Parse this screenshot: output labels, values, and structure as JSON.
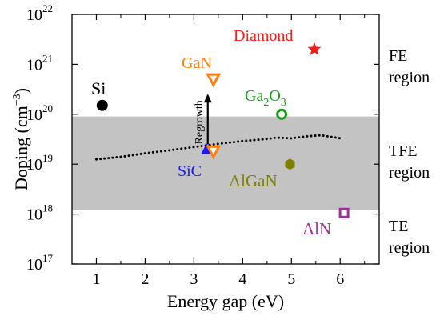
{
  "chart_data": {
    "type": "scatter",
    "title": "",
    "xlabel": "Energy gap (eV)",
    "ylabel": "Doping (cm⁻³)",
    "ylabel_parts": {
      "main": "Doping (cm",
      "sup": "−3",
      "close": ")"
    },
    "xlim": [
      0.5,
      6.8
    ],
    "ylim": [
      1e+17,
      1e+22
    ],
    "yscale": "log",
    "x_ticks": [
      1,
      2,
      3,
      4,
      5,
      6
    ],
    "x_tick_labels": [
      "1",
      "2",
      "3",
      "4",
      "5",
      "6"
    ],
    "y_ticks": [
      {
        "value": 1e+17,
        "base": "10",
        "exp": "17"
      },
      {
        "value": 1e+18,
        "base": "10",
        "exp": "18"
      },
      {
        "value": 1e+19,
        "base": "10",
        "exp": "19"
      },
      {
        "value": 1e+20,
        "base": "10",
        "exp": "20"
      },
      {
        "value": 1e+21,
        "base": "10",
        "exp": "21"
      },
      {
        "value": 1e+22,
        "base": "10",
        "exp": "22"
      }
    ],
    "grid": false,
    "shaded_band": {
      "y_from": 1.2e+18,
      "y_to": 9e+19,
      "color": "#c3c3c3"
    },
    "regions": [
      {
        "lines": [
          "FE",
          "region"
        ]
      },
      {
        "lines": [
          "TFE",
          "region"
        ]
      },
      {
        "lines": [
          "TE",
          "region"
        ]
      }
    ],
    "materials": [
      {
        "name": "Si",
        "x": 1.12,
        "y": 1.5e+20,
        "marker": "filled-circle",
        "color": "#000000",
        "label_color": "#000000"
      },
      {
        "name": "SiC",
        "x": 3.26,
        "y": 2e+19,
        "marker": "filled-triangle-up",
        "color": "#1a1aff",
        "label_color": "#1a1aff"
      },
      {
        "name": "GaN",
        "x": 3.4,
        "y": 5e+20,
        "marker": "open-triangle-down",
        "color": "#ff7f0e",
        "label_color": "#ff7f0e"
      },
      {
        "name": "GaN (regrowth base)",
        "x": 3.4,
        "y": 1.8e+19,
        "marker": "open-triangle-down",
        "color": "#ff7f0e"
      },
      {
        "name": "Ga₂O₃",
        "label_base": "Ga",
        "label_sub1": "2",
        "label_mid": "O",
        "label_sub2": "3",
        "x": 4.8,
        "y": 1e+20,
        "marker": "open-circle",
        "color": "#1a9a1a",
        "label_color": "#1a9a1a"
      },
      {
        "name": "AlGaN",
        "x": 4.97,
        "y": 1e+19,
        "marker": "filled-hexagon",
        "color": "#808000",
        "label_color": "#808000"
      },
      {
        "name": "Diamond",
        "x": 5.47,
        "y": 2e+21,
        "marker": "filled-star",
        "color": "#ff1a1a",
        "label_color": "#ff1a1a"
      },
      {
        "name": "AlN",
        "x": 6.08,
        "y": 1.05e+18,
        "marker": "open-square",
        "color": "#993399",
        "label_color": "#993399"
      }
    ],
    "regrowth_arrow": {
      "x": 3.4,
      "y_from": 2e+19,
      "y_to": 4e+20,
      "label": "Regrowth"
    },
    "boundary_curve": {
      "style": "dotted",
      "color": "#000000",
      "points": [
        [
          1.0,
          1.25e+19
        ],
        [
          1.5,
          1.4e+19
        ],
        [
          2.0,
          1.65e+19
        ],
        [
          2.5,
          1.9e+19
        ],
        [
          3.0,
          2.2e+19
        ],
        [
          3.5,
          2.55e+19
        ],
        [
          4.0,
          2.9e+19
        ],
        [
          4.5,
          3.2e+19
        ],
        [
          4.7,
          3.4e+19
        ],
        [
          5.0,
          3.3e+19
        ],
        [
          5.3,
          3.6e+19
        ],
        [
          5.6,
          3.8e+19
        ],
        [
          6.0,
          3.3e+19
        ]
      ]
    }
  }
}
